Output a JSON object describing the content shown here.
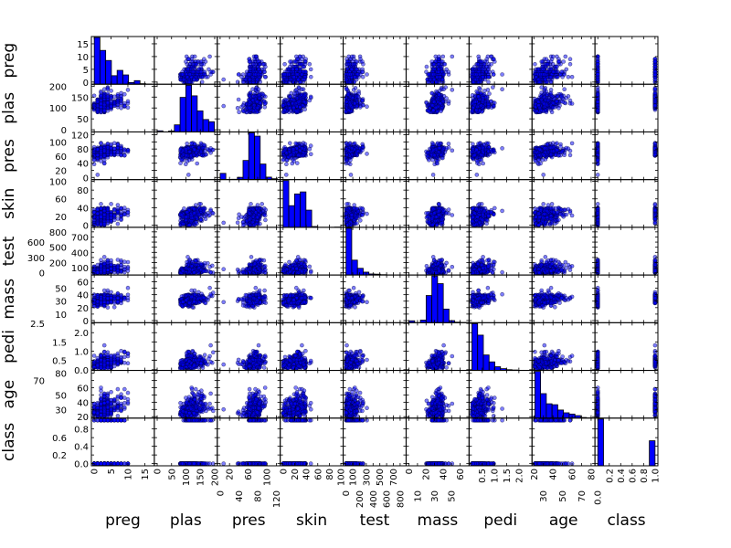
{
  "chart_data": {
    "type": "scatter",
    "kind": "scatter-matrix",
    "variables": [
      "preg",
      "plas",
      "pres",
      "skin",
      "test",
      "mass",
      "pedi",
      "age",
      "class"
    ],
    "ranges": {
      "preg": [
        0,
        17
      ],
      "plas": [
        0,
        199
      ],
      "pres": [
        0,
        122
      ],
      "skin": [
        0,
        99
      ],
      "test": [
        0,
        846
      ],
      "mass": [
        0,
        67.1
      ],
      "pedi": [
        0.078,
        2.42
      ],
      "age": [
        21,
        81
      ],
      "class": [
        0,
        1
      ]
    },
    "x_ticks": {
      "preg": [
        "0",
        "5",
        "10",
        "15"
      ],
      "plas": [
        "0",
        "50",
        "100",
        "150",
        "200"
      ],
      "pres": [
        "0",
        "20",
        "40",
        "60",
        "80",
        "100",
        "120"
      ],
      "skin": [
        "0",
        "20",
        "40",
        "60",
        "80",
        "100"
      ],
      "test": [
        "0",
        "100",
        "200",
        "300",
        "400",
        "500",
        "600",
        "700",
        "800"
      ],
      "mass": [
        "0",
        "10",
        "20",
        "30",
        "40",
        "50",
        "60"
      ],
      "pedi": [
        "0.5",
        "1.0",
        "1.5",
        "2.0"
      ],
      "age": [
        "20",
        "30",
        "40",
        "50",
        "60",
        "70",
        "80"
      ],
      "class": [
        "0.0",
        "0.2",
        "0.4",
        "0.6",
        "0.8",
        "1.0"
      ]
    },
    "y_ticks": {
      "preg": [
        "0",
        "5",
        "10",
        "15"
      ],
      "plas": [
        "0",
        "50",
        "100",
        "150",
        "200"
      ],
      "pres": [
        "0",
        "20",
        "40",
        "60",
        "80",
        "100",
        "120"
      ],
      "skin": [
        "0",
        "20",
        "40",
        "60",
        "80",
        "100"
      ],
      "test": [
        "0",
        "100",
        "200",
        "300",
        "400",
        "500",
        "600",
        "700",
        "800"
      ],
      "mass": [
        "0",
        "10",
        "20",
        "30",
        "40",
        "50",
        "60"
      ],
      "pedi": [
        "0.0",
        "0.5",
        "1.0",
        "1.5",
        "2.0",
        "2.5"
      ],
      "age": [
        "20",
        "30",
        "40",
        "50",
        "60",
        "70",
        "80"
      ],
      "class": [
        "0.0",
        "0.2",
        "0.4",
        "0.6",
        "0.8"
      ]
    },
    "diagonal": "histogram",
    "histograms": {
      "preg": [
        246,
        178,
        125,
        45,
        73,
        49,
        9,
        19,
        3,
        1
      ],
      "plas": [
        5,
        0,
        4,
        32,
        156,
        211,
        163,
        95,
        56,
        46
      ],
      "pres": [
        35,
        1,
        2,
        13,
        107,
        261,
        243,
        87,
        14,
        5
      ],
      "skin": [
        231,
        107,
        165,
        175,
        85,
        4,
        0,
        0,
        0,
        1
      ],
      "test": [
        487,
        155,
        70,
        30,
        11,
        9,
        4,
        1,
        0,
        1
      ],
      "mass": [
        11,
        0,
        15,
        156,
        268,
        224,
        78,
        12,
        3,
        1
      ],
      "pedi": [
        318,
        240,
        105,
        58,
        25,
        12,
        5,
        3,
        1,
        1
      ],
      "age": [
        300,
        157,
        92,
        86,
        52,
        34,
        26,
        16,
        4,
        1
      ],
      "class": [
        500,
        0,
        0,
        0,
        0,
        0,
        0,
        0,
        0,
        268
      ]
    },
    "colors": {
      "points": "#0000ff",
      "bars": "#0000ff",
      "edge": "#000000"
    },
    "grid": false
  }
}
